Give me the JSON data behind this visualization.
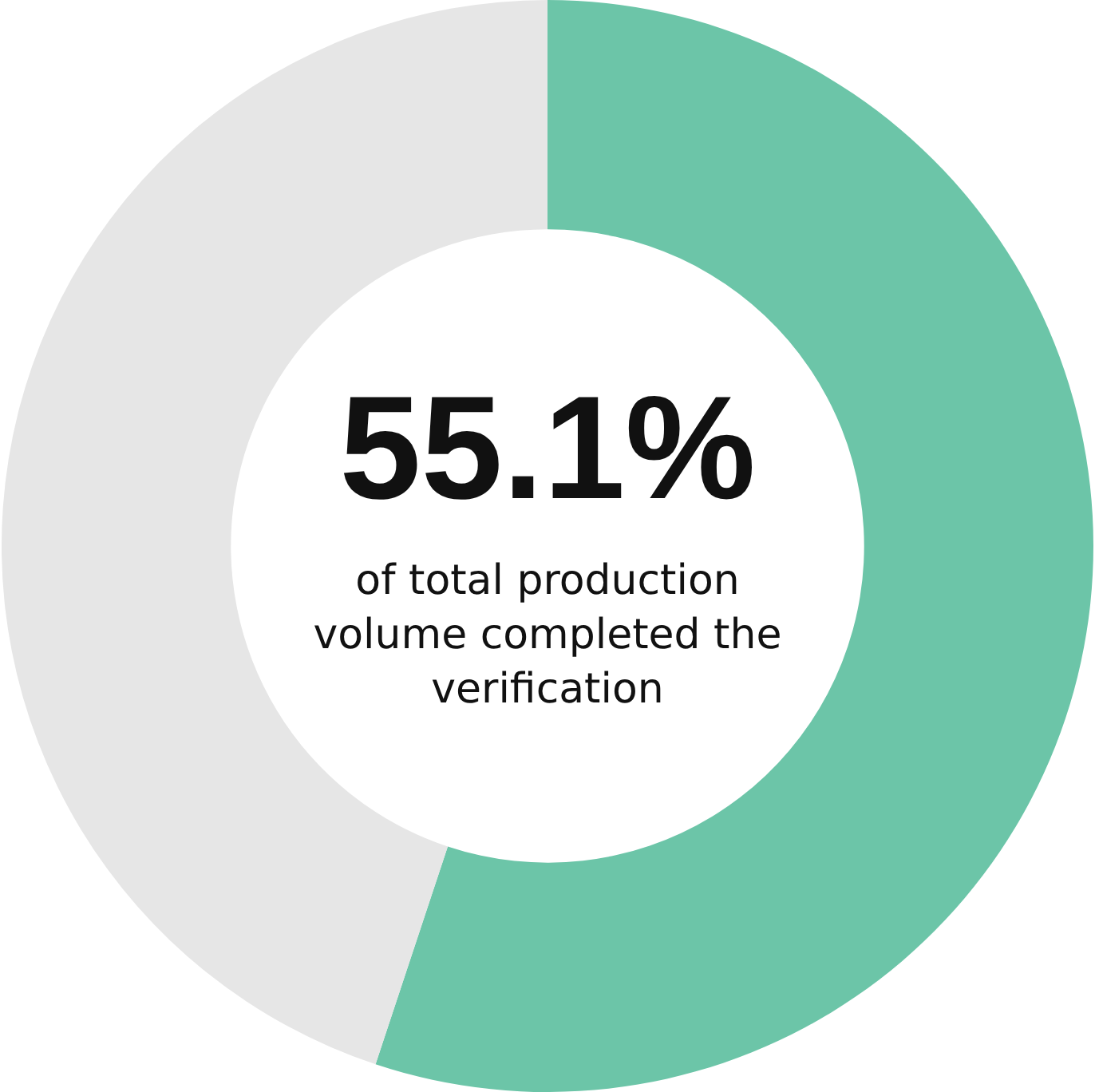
{
  "chart_data": {
    "type": "donut",
    "categories": [
      null,
      null
    ],
    "values": [
      55.1,
      44.9
    ],
    "colors": [
      "#6cc5a8",
      "#e6e6e6"
    ],
    "value_labels": [
      "55.1%",
      null
    ],
    "annotations": [
      "of total production volume completed the verification"
    ],
    "legend": false
  }
}
